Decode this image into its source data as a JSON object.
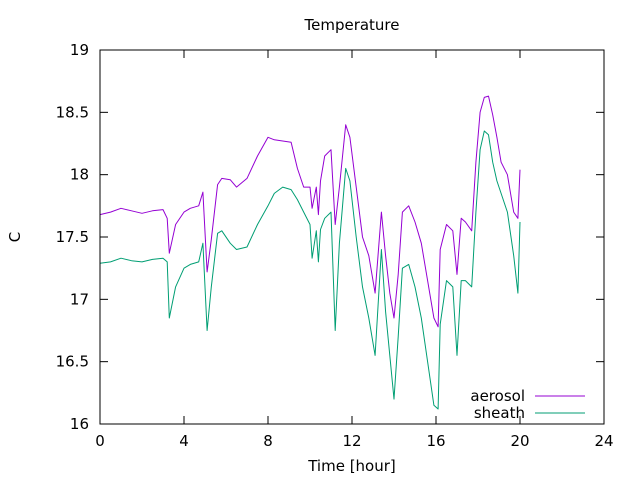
{
  "chart_data": {
    "type": "line",
    "title": "Temperature",
    "xlabel": "Time [hour]",
    "ylabel": "C",
    "xlim": [
      0,
      24
    ],
    "ylim": [
      16,
      19
    ],
    "xticks": [
      0,
      4,
      8,
      12,
      16,
      20,
      24
    ],
    "yticks": [
      16,
      16.5,
      17,
      17.5,
      18,
      18.5,
      19
    ],
    "grid": false,
    "legend_position": "bottom-right",
    "series": [
      {
        "name": "aerosol",
        "color": "#9400d3",
        "x": [
          0,
          0.5,
          1,
          1.5,
          2,
          2.5,
          3,
          3.2,
          3.3,
          3.6,
          4,
          4.3,
          4.7,
          4.9,
          5.1,
          5.3,
          5.6,
          5.8,
          6.2,
          6.5,
          7,
          7.5,
          8,
          8.3,
          8.7,
          9.1,
          9.4,
          9.7,
          10,
          10.1,
          10.3,
          10.4,
          10.5,
          10.7,
          11,
          11.2,
          11.4,
          11.7,
          11.9,
          12.2,
          12.5,
          12.8,
          13.1,
          13.4,
          13.6,
          13.8,
          14,
          14.2,
          14.4,
          14.7,
          15,
          15.3,
          15.6,
          15.9,
          16.1,
          16.2,
          16.5,
          16.8,
          17,
          17.2,
          17.4,
          17.7,
          17.9,
          18.1,
          18.3,
          18.5,
          18.7,
          18.9,
          19.1,
          19.4,
          19.7,
          19.9,
          20
        ],
        "values": [
          17.68,
          17.7,
          17.73,
          17.71,
          17.69,
          17.71,
          17.72,
          17.65,
          17.37,
          17.6,
          17.7,
          17.73,
          17.75,
          17.86,
          17.22,
          17.48,
          17.92,
          17.97,
          17.96,
          17.9,
          17.97,
          18.15,
          18.3,
          18.28,
          18.27,
          18.26,
          18.05,
          17.9,
          17.9,
          17.73,
          17.9,
          17.68,
          17.95,
          18.15,
          18.2,
          17.6,
          17.9,
          18.4,
          18.3,
          17.9,
          17.5,
          17.35,
          17.05,
          17.7,
          17.35,
          17.05,
          16.85,
          17.2,
          17.7,
          17.75,
          17.62,
          17.45,
          17.15,
          16.85,
          16.78,
          17.4,
          17.6,
          17.55,
          17.2,
          17.65,
          17.62,
          17.55,
          18.1,
          18.5,
          18.62,
          18.63,
          18.48,
          18.3,
          18.1,
          18.0,
          17.7,
          17.65,
          18.04
        ]
      },
      {
        "name": "sheath",
        "color": "#009e73",
        "x": [
          0,
          0.5,
          1,
          1.5,
          2,
          2.5,
          3,
          3.2,
          3.3,
          3.6,
          4,
          4.3,
          4.7,
          4.9,
          5.1,
          5.3,
          5.6,
          5.8,
          6.2,
          6.5,
          7,
          7.5,
          8,
          8.3,
          8.7,
          9.1,
          9.4,
          9.7,
          10,
          10.1,
          10.3,
          10.4,
          10.5,
          10.7,
          11,
          11.2,
          11.4,
          11.7,
          11.9,
          12.2,
          12.5,
          12.8,
          13.1,
          13.4,
          13.6,
          13.8,
          14,
          14.2,
          14.4,
          14.7,
          15,
          15.3,
          15.6,
          15.9,
          16.1,
          16.2,
          16.5,
          16.8,
          17,
          17.2,
          17.4,
          17.7,
          17.9,
          18.1,
          18.3,
          18.5,
          18.7,
          18.9,
          19.1,
          19.4,
          19.7,
          19.9,
          20
        ],
        "values": [
          17.29,
          17.3,
          17.33,
          17.31,
          17.3,
          17.32,
          17.33,
          17.3,
          16.85,
          17.1,
          17.25,
          17.28,
          17.3,
          17.45,
          16.75,
          17.1,
          17.53,
          17.55,
          17.45,
          17.4,
          17.42,
          17.6,
          17.75,
          17.85,
          17.9,
          17.88,
          17.8,
          17.7,
          17.6,
          17.33,
          17.55,
          17.3,
          17.56,
          17.65,
          17.7,
          16.75,
          17.45,
          18.05,
          17.95,
          17.5,
          17.1,
          16.85,
          16.55,
          17.4,
          16.9,
          16.55,
          16.2,
          16.7,
          17.25,
          17.28,
          17.1,
          16.85,
          16.5,
          16.15,
          16.12,
          16.8,
          17.15,
          17.1,
          16.55,
          17.15,
          17.15,
          17.1,
          17.7,
          18.2,
          18.35,
          18.32,
          18.1,
          17.95,
          17.85,
          17.7,
          17.35,
          17.05,
          17.62
        ]
      }
    ]
  }
}
